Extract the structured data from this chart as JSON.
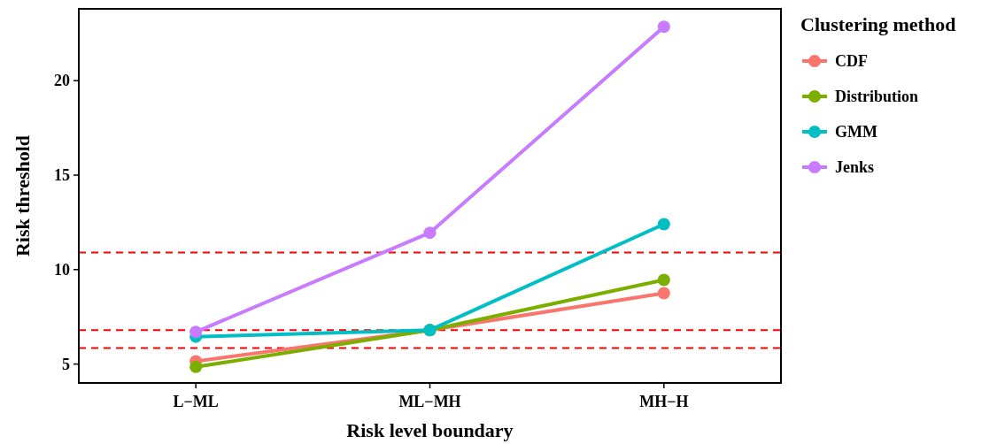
{
  "chart_data": {
    "type": "line",
    "xlabel": "Risk level boundary",
    "ylabel": "Risk threshold",
    "legend_title": "Clustering method",
    "categories": [
      "L−ML",
      "ML−MH",
      "MH−H"
    ],
    "series": [
      {
        "name": "CDF",
        "color": "#f8766d",
        "values": [
          5.15,
          6.8,
          8.75
        ]
      },
      {
        "name": "Distribution",
        "color": "#7cae00",
        "values": [
          4.85,
          6.8,
          9.45
        ]
      },
      {
        "name": "GMM",
        "color": "#00bfc4",
        "values": [
          6.45,
          6.8,
          12.4
        ]
      },
      {
        "name": "Jenks",
        "color": "#c77cff",
        "values": [
          6.7,
          11.95,
          22.85
        ]
      }
    ],
    "ylim": [
      4.0,
      23.8
    ],
    "yticks": [
      5,
      10,
      15,
      20
    ],
    "grid": false,
    "legend": "right",
    "marker": "circle",
    "line_style": "solid",
    "ref_lines": [
      {
        "axis": "y",
        "value": 10.9,
        "color": "#ff0000",
        "line_style": "dashed"
      },
      {
        "axis": "y",
        "value": 6.8,
        "color": "#ff0000",
        "line_style": "dashed"
      },
      {
        "axis": "y",
        "value": 5.85,
        "color": "#ff0000",
        "line_style": "dashed"
      }
    ]
  }
}
